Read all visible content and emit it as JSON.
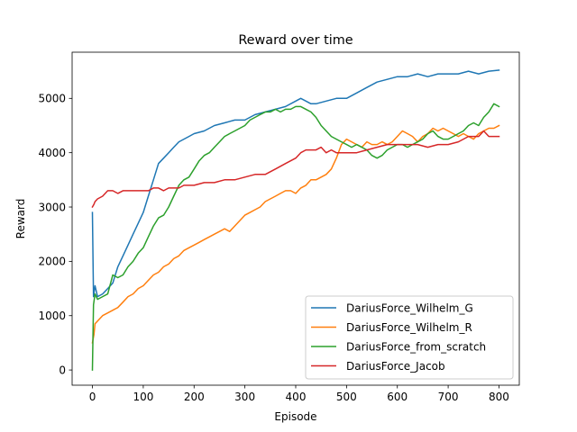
{
  "chart_data": {
    "type": "line",
    "title": "Reward over time",
    "xlabel": "Episode",
    "ylabel": "Reward",
    "xlim": [
      -40,
      840
    ],
    "ylim": [
      -280,
      5850
    ],
    "xticks": [
      0,
      100,
      200,
      300,
      400,
      500,
      600,
      700,
      800
    ],
    "yticks": [
      0,
      1000,
      2000,
      3000,
      4000,
      5000
    ],
    "legend_position": "lower-right",
    "series": [
      {
        "name": "DariusForce_Wilhelm_G",
        "color": "#1f77b4",
        "points": [
          [
            0,
            2900
          ],
          [
            2,
            1350
          ],
          [
            5,
            1550
          ],
          [
            10,
            1350
          ],
          [
            20,
            1400
          ],
          [
            30,
            1500
          ],
          [
            40,
            1600
          ],
          [
            50,
            1900
          ],
          [
            60,
            2100
          ],
          [
            70,
            2300
          ],
          [
            80,
            2500
          ],
          [
            90,
            2700
          ],
          [
            100,
            2900
          ],
          [
            110,
            3200
          ],
          [
            120,
            3500
          ],
          [
            130,
            3800
          ],
          [
            140,
            3900
          ],
          [
            150,
            4000
          ],
          [
            160,
            4100
          ],
          [
            170,
            4200
          ],
          [
            180,
            4250
          ],
          [
            190,
            4300
          ],
          [
            200,
            4350
          ],
          [
            220,
            4400
          ],
          [
            240,
            4500
          ],
          [
            260,
            4550
          ],
          [
            280,
            4600
          ],
          [
            300,
            4600
          ],
          [
            320,
            4700
          ],
          [
            340,
            4750
          ],
          [
            360,
            4800
          ],
          [
            380,
            4850
          ],
          [
            400,
            4950
          ],
          [
            410,
            5000
          ],
          [
            420,
            4950
          ],
          [
            430,
            4900
          ],
          [
            440,
            4900
          ],
          [
            460,
            4950
          ],
          [
            480,
            5000
          ],
          [
            500,
            5000
          ],
          [
            520,
            5100
          ],
          [
            540,
            5200
          ],
          [
            560,
            5300
          ],
          [
            580,
            5350
          ],
          [
            600,
            5400
          ],
          [
            620,
            5400
          ],
          [
            640,
            5450
          ],
          [
            660,
            5400
          ],
          [
            680,
            5450
          ],
          [
            700,
            5450
          ],
          [
            720,
            5450
          ],
          [
            740,
            5500
          ],
          [
            760,
            5450
          ],
          [
            780,
            5500
          ],
          [
            800,
            5520
          ]
        ]
      },
      {
        "name": "DariusForce_Wilhelm_R",
        "color": "#ff7f0e",
        "points": [
          [
            0,
            500
          ],
          [
            3,
            650
          ],
          [
            5,
            850
          ],
          [
            10,
            900
          ],
          [
            20,
            1000
          ],
          [
            30,
            1050
          ],
          [
            40,
            1100
          ],
          [
            50,
            1150
          ],
          [
            60,
            1250
          ],
          [
            70,
            1350
          ],
          [
            80,
            1400
          ],
          [
            90,
            1500
          ],
          [
            100,
            1550
          ],
          [
            110,
            1650
          ],
          [
            120,
            1750
          ],
          [
            130,
            1800
          ],
          [
            140,
            1900
          ],
          [
            150,
            1950
          ],
          [
            160,
            2050
          ],
          [
            170,
            2100
          ],
          [
            180,
            2200
          ],
          [
            190,
            2250
          ],
          [
            200,
            2300
          ],
          [
            210,
            2350
          ],
          [
            220,
            2400
          ],
          [
            230,
            2450
          ],
          [
            240,
            2500
          ],
          [
            250,
            2550
          ],
          [
            260,
            2600
          ],
          [
            270,
            2550
          ],
          [
            280,
            2650
          ],
          [
            290,
            2750
          ],
          [
            300,
            2850
          ],
          [
            310,
            2900
          ],
          [
            320,
            2950
          ],
          [
            330,
            3000
          ],
          [
            340,
            3100
          ],
          [
            350,
            3150
          ],
          [
            360,
            3200
          ],
          [
            370,
            3250
          ],
          [
            380,
            3300
          ],
          [
            390,
            3300
          ],
          [
            400,
            3250
          ],
          [
            410,
            3350
          ],
          [
            420,
            3400
          ],
          [
            430,
            3500
          ],
          [
            440,
            3500
          ],
          [
            450,
            3550
          ],
          [
            460,
            3600
          ],
          [
            470,
            3700
          ],
          [
            480,
            3900
          ],
          [
            490,
            4150
          ],
          [
            500,
            4250
          ],
          [
            510,
            4200
          ],
          [
            520,
            4150
          ],
          [
            530,
            4100
          ],
          [
            540,
            4200
          ],
          [
            550,
            4150
          ],
          [
            560,
            4150
          ],
          [
            570,
            4200
          ],
          [
            580,
            4150
          ],
          [
            590,
            4200
          ],
          [
            600,
            4300
          ],
          [
            610,
            4400
          ],
          [
            620,
            4350
          ],
          [
            630,
            4300
          ],
          [
            640,
            4200
          ],
          [
            650,
            4300
          ],
          [
            660,
            4350
          ],
          [
            670,
            4450
          ],
          [
            680,
            4400
          ],
          [
            690,
            4450
          ],
          [
            700,
            4400
          ],
          [
            710,
            4350
          ],
          [
            720,
            4300
          ],
          [
            730,
            4350
          ],
          [
            740,
            4300
          ],
          [
            750,
            4250
          ],
          [
            760,
            4350
          ],
          [
            770,
            4400
          ],
          [
            780,
            4450
          ],
          [
            790,
            4450
          ],
          [
            800,
            4500
          ]
        ]
      },
      {
        "name": "DariusForce_from_scratch",
        "color": "#2ca02c",
        "points": [
          [
            0,
            0
          ],
          [
            2,
            1200
          ],
          [
            5,
            1400
          ],
          [
            10,
            1300
          ],
          [
            20,
            1350
          ],
          [
            30,
            1400
          ],
          [
            40,
            1750
          ],
          [
            50,
            1700
          ],
          [
            60,
            1750
          ],
          [
            70,
            1900
          ],
          [
            80,
            2000
          ],
          [
            90,
            2150
          ],
          [
            100,
            2250
          ],
          [
            110,
            2450
          ],
          [
            120,
            2650
          ],
          [
            130,
            2800
          ],
          [
            140,
            2850
          ],
          [
            150,
            3000
          ],
          [
            160,
            3200
          ],
          [
            170,
            3400
          ],
          [
            180,
            3500
          ],
          [
            190,
            3550
          ],
          [
            200,
            3700
          ],
          [
            210,
            3850
          ],
          [
            220,
            3950
          ],
          [
            230,
            4000
          ],
          [
            240,
            4100
          ],
          [
            250,
            4200
          ],
          [
            260,
            4300
          ],
          [
            270,
            4350
          ],
          [
            280,
            4400
          ],
          [
            290,
            4450
          ],
          [
            300,
            4500
          ],
          [
            310,
            4600
          ],
          [
            320,
            4650
          ],
          [
            330,
            4700
          ],
          [
            340,
            4750
          ],
          [
            350,
            4750
          ],
          [
            360,
            4800
          ],
          [
            370,
            4750
          ],
          [
            380,
            4800
          ],
          [
            390,
            4800
          ],
          [
            400,
            4850
          ],
          [
            410,
            4850
          ],
          [
            420,
            4800
          ],
          [
            430,
            4750
          ],
          [
            440,
            4650
          ],
          [
            450,
            4500
          ],
          [
            460,
            4400
          ],
          [
            470,
            4300
          ],
          [
            480,
            4250
          ],
          [
            490,
            4200
          ],
          [
            500,
            4150
          ],
          [
            510,
            4100
          ],
          [
            520,
            4150
          ],
          [
            530,
            4100
          ],
          [
            540,
            4050
          ],
          [
            550,
            3950
          ],
          [
            560,
            3900
          ],
          [
            570,
            3950
          ],
          [
            580,
            4050
          ],
          [
            590,
            4100
          ],
          [
            600,
            4150
          ],
          [
            610,
            4150
          ],
          [
            620,
            4100
          ],
          [
            630,
            4150
          ],
          [
            640,
            4200
          ],
          [
            650,
            4250
          ],
          [
            660,
            4350
          ],
          [
            670,
            4400
          ],
          [
            680,
            4300
          ],
          [
            690,
            4250
          ],
          [
            700,
            4250
          ],
          [
            710,
            4300
          ],
          [
            720,
            4350
          ],
          [
            730,
            4400
          ],
          [
            740,
            4500
          ],
          [
            750,
            4550
          ],
          [
            760,
            4500
          ],
          [
            770,
            4650
          ],
          [
            780,
            4750
          ],
          [
            790,
            4900
          ],
          [
            800,
            4850
          ]
        ]
      },
      {
        "name": "DariusForce_Jacob",
        "color": "#d62728",
        "points": [
          [
            0,
            3000
          ],
          [
            3,
            3050
          ],
          [
            5,
            3100
          ],
          [
            10,
            3150
          ],
          [
            20,
            3200
          ],
          [
            30,
            3300
          ],
          [
            40,
            3300
          ],
          [
            50,
            3250
          ],
          [
            60,
            3300
          ],
          [
            70,
            3300
          ],
          [
            80,
            3300
          ],
          [
            90,
            3300
          ],
          [
            100,
            3300
          ],
          [
            110,
            3300
          ],
          [
            120,
            3350
          ],
          [
            130,
            3350
          ],
          [
            140,
            3300
          ],
          [
            150,
            3350
          ],
          [
            160,
            3350
          ],
          [
            170,
            3350
          ],
          [
            180,
            3400
          ],
          [
            190,
            3400
          ],
          [
            200,
            3400
          ],
          [
            220,
            3450
          ],
          [
            240,
            3450
          ],
          [
            260,
            3500
          ],
          [
            280,
            3500
          ],
          [
            300,
            3550
          ],
          [
            320,
            3600
          ],
          [
            340,
            3600
          ],
          [
            360,
            3700
          ],
          [
            380,
            3800
          ],
          [
            400,
            3900
          ],
          [
            410,
            4000
          ],
          [
            420,
            4050
          ],
          [
            430,
            4050
          ],
          [
            440,
            4050
          ],
          [
            450,
            4100
          ],
          [
            460,
            4000
          ],
          [
            470,
            4050
          ],
          [
            480,
            4000
          ],
          [
            500,
            4000
          ],
          [
            520,
            4000
          ],
          [
            540,
            4050
          ],
          [
            560,
            4100
          ],
          [
            580,
            4150
          ],
          [
            600,
            4150
          ],
          [
            620,
            4150
          ],
          [
            640,
            4150
          ],
          [
            660,
            4100
          ],
          [
            680,
            4150
          ],
          [
            700,
            4150
          ],
          [
            720,
            4200
          ],
          [
            740,
            4300
          ],
          [
            760,
            4300
          ],
          [
            770,
            4400
          ],
          [
            780,
            4300
          ],
          [
            790,
            4300
          ],
          [
            800,
            4300
          ]
        ]
      }
    ]
  }
}
